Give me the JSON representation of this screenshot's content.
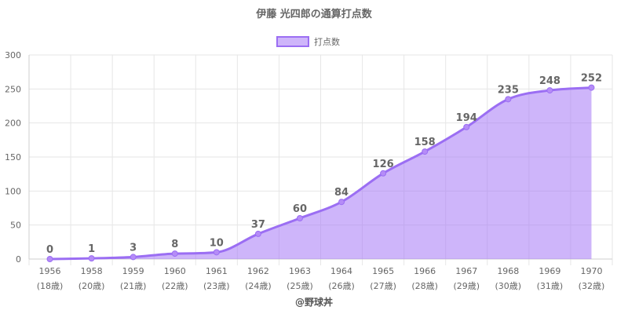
{
  "chart_data": {
    "type": "area",
    "title": "伊藤 光四郎の通算打点数",
    "legend": {
      "label": "打点数",
      "position": "top-center"
    },
    "categories": [
      "1956",
      "1958",
      "1959",
      "1960",
      "1961",
      "1962",
      "1963",
      "1964",
      "1965",
      "1966",
      "1967",
      "1968",
      "1969",
      "1970"
    ],
    "sublabels": [
      "(18歳)",
      "(20歳)",
      "(21歳)",
      "(22歳)",
      "(23歳)",
      "(24歳)",
      "(25歳)",
      "(26歳)",
      "(27歳)",
      "(28歳)",
      "(29歳)",
      "(30歳)",
      "(31歳)",
      "(32歳)"
    ],
    "series": [
      {
        "name": "打点数",
        "values": [
          0,
          1,
          3,
          8,
          10,
          37,
          60,
          84,
          126,
          158,
          194,
          235,
          248,
          252
        ]
      }
    ],
    "ylim": [
      0,
      300
    ],
    "yticks": [
      0,
      50,
      100,
      150,
      200,
      250,
      300
    ],
    "grid": true,
    "colors": {
      "line": "#9b6ef3",
      "fill": "rgba(166,120,246,0.55)",
      "point": "#b58cf7"
    },
    "credit": "@野球丼"
  }
}
